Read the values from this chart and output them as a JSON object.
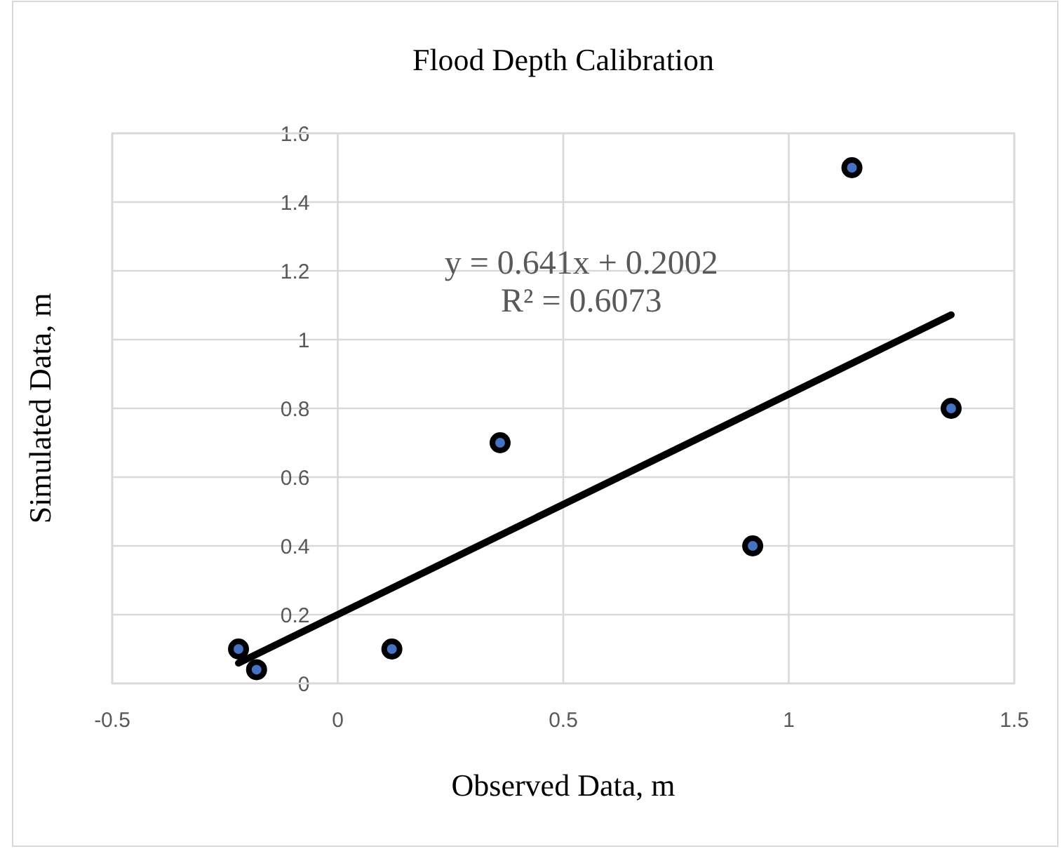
{
  "chart_data": {
    "type": "scatter",
    "title": "Flood Depth Calibration",
    "xlabel": "Observed Data, m",
    "ylabel": "Simulated Data, m",
    "xlim": [
      -0.5,
      1.5
    ],
    "xticks": [
      -0.5,
      0,
      0.5,
      1,
      1.5
    ],
    "ylim": [
      0,
      1.6
    ],
    "yticks": [
      0,
      0.2,
      0.4,
      0.6,
      0.8,
      1,
      1.2,
      1.4,
      1.6
    ],
    "grid": true,
    "series": [
      {
        "color": "#4472c4",
        "marker": "circle",
        "x": [
          -0.22,
          -0.18,
          0.12,
          0.36,
          0.92,
          1.14,
          1.36
        ],
        "values": [
          0.1,
          0.04,
          0.1,
          0.7,
          0.4,
          1.5,
          0.8
        ]
      },
      {
        "type": "line",
        "color": "#000000",
        "marker": "none",
        "x": [
          -0.22,
          1.36
        ],
        "values": [
          0.059,
          1.072
        ],
        "line_style": "solid"
      }
    ],
    "annotations": [
      "y = 0.641x + 0.2002",
      "R² = 0.6073"
    ]
  }
}
